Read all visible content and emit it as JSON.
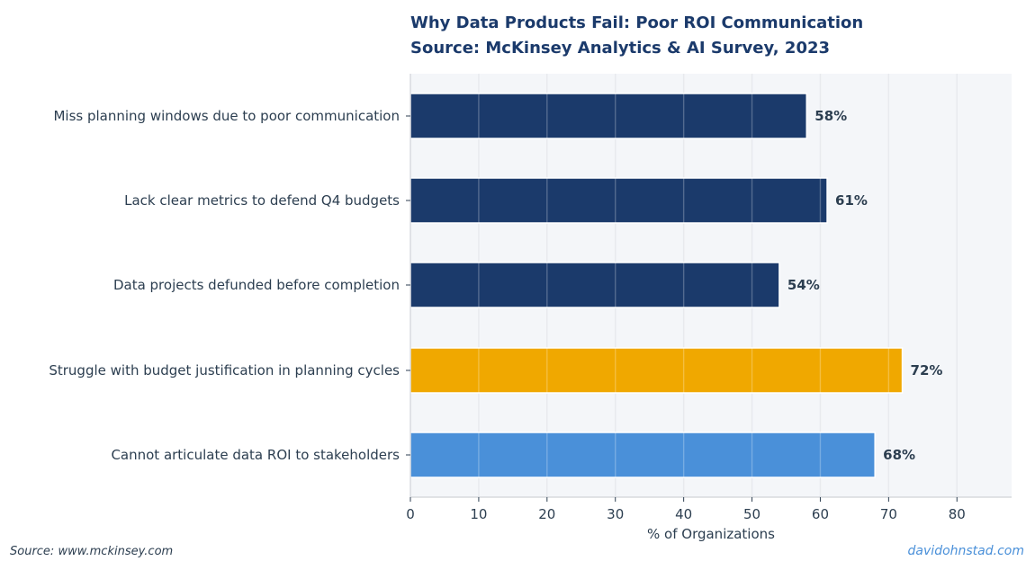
{
  "chart_data": {
    "type": "bar",
    "orientation": "horizontal",
    "title": "Why Data Products Fail: Poor ROI Communication",
    "subtitle": "Source: McKinsey Analytics & AI Survey, 2023",
    "xlabel": "% of Organizations",
    "ylabel": "",
    "xlim": [
      0,
      88
    ],
    "xticks": [
      0,
      10,
      20,
      30,
      40,
      50,
      60,
      70,
      80
    ],
    "grid": true,
    "legend": false,
    "categories": [
      "Miss planning windows due to poor communication",
      "Lack clear metrics to defend Q4 budgets",
      "Data projects defunded before completion",
      "Struggle with budget justification in planning cycles",
      "Cannot articulate data ROI to stakeholders"
    ],
    "values": [
      58,
      61,
      54,
      72,
      68
    ],
    "value_labels": [
      "58%",
      "61%",
      "54%",
      "72%",
      "68%"
    ],
    "bar_colors": [
      "#1b3a6b",
      "#1b3a6b",
      "#1b3a6b",
      "#f0a800",
      "#4a90d9"
    ],
    "plot_background": "#f4f6f9"
  },
  "footer": {
    "source": "Source: www.mckinsey.com",
    "credit": "davidohnstad.com"
  }
}
